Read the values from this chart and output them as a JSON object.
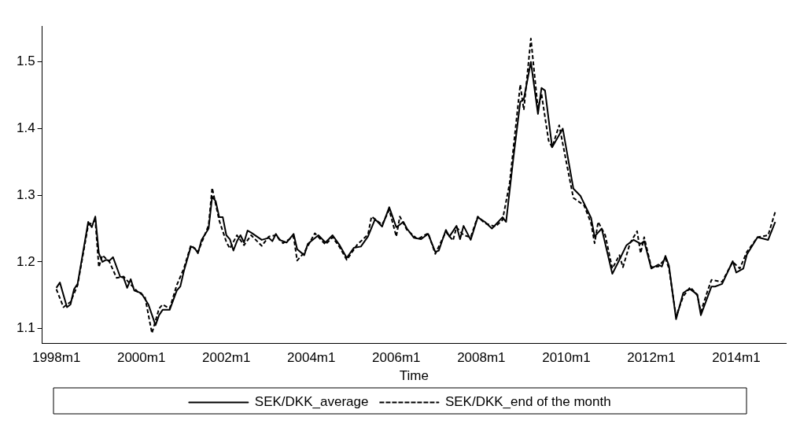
{
  "chart_data": {
    "type": "line",
    "xlabel": "Time",
    "marker": "none",
    "grid": false,
    "legend": "bottom",
    "xlim": [
      "1997-09",
      "2015-03"
    ],
    "ylim": [
      1.078,
      1.554
    ],
    "xticks": [
      {
        "value": "1998-01",
        "label": "1998m1"
      },
      {
        "value": "2000-01",
        "label": "2000m1"
      },
      {
        "value": "2002-01",
        "label": "2002m1"
      },
      {
        "value": "2004-01",
        "label": "2004m1"
      },
      {
        "value": "2006-01",
        "label": "2006m1"
      },
      {
        "value": "2008-01",
        "label": "2008m1"
      },
      {
        "value": "2010-01",
        "label": "2010m1"
      },
      {
        "value": "2012-01",
        "label": "2012m1"
      },
      {
        "value": "2014-01",
        "label": "2014m1"
      }
    ],
    "yticks": [
      1.1,
      1.2,
      1.3,
      1.4,
      1.5
    ],
    "series": [
      {
        "name": "SEK/DKK_average",
        "color": "#000000",
        "line_style": "solid",
        "x": [
          "1998-01",
          "1998-02",
          "1998-04",
          "1998-05",
          "1998-06",
          "1998-07",
          "1998-10",
          "1998-11",
          "1998-12",
          "1999-01",
          "1999-02",
          "1999-03",
          "1999-04",
          "1999-05",
          "1999-07",
          "1999-08",
          "1999-09",
          "1999-10",
          "1999-11",
          "2000-01",
          "2000-03",
          "2000-05",
          "2000-06",
          "2000-07",
          "2000-09",
          "2000-11",
          "2000-12",
          "2001-01",
          "2001-03",
          "2001-04",
          "2001-05",
          "2001-06",
          "2001-08",
          "2001-09",
          "2001-10",
          "2001-11",
          "2001-12",
          "2002-01",
          "2002-02",
          "2002-03",
          "2002-04",
          "2002-05",
          "2002-06",
          "2002-07",
          "2002-08",
          "2002-11",
          "2003-01",
          "2003-02",
          "2003-03",
          "2003-04",
          "2003-06",
          "2003-08",
          "2003-09",
          "2003-11",
          "2003-12",
          "2004-03",
          "2004-05",
          "2004-07",
          "2004-09",
          "2004-11",
          "2005-01",
          "2005-03",
          "2005-05",
          "2005-07",
          "2005-09",
          "2005-11",
          "2006-01",
          "2006-03",
          "2006-04",
          "2006-06",
          "2006-08",
          "2006-10",
          "2006-12",
          "2007-01",
          "2007-03",
          "2007-04",
          "2007-06",
          "2007-07",
          "2007-08",
          "2007-10",
          "2007-12",
          "2008-02",
          "2008-04",
          "2008-07",
          "2008-08",
          "2008-10",
          "2008-12",
          "2009-01",
          "2009-03",
          "2009-05",
          "2009-06",
          "2009-07",
          "2009-09",
          "2009-12",
          "2010-03",
          "2010-05",
          "2010-08",
          "2010-09",
          "2010-11",
          "2011-02",
          "2011-04",
          "2011-06",
          "2011-08",
          "2011-10",
          "2011-11",
          "2012-01",
          "2012-03",
          "2012-04",
          "2012-05",
          "2012-06",
          "2012-08",
          "2012-10",
          "2012-11",
          "2012-12",
          "2013-02",
          "2013-03",
          "2013-06",
          "2013-07",
          "2013-09",
          "2013-12",
          "2014-01",
          "2014-03",
          "2014-04",
          "2014-07",
          "2014-10",
          "2014-12"
        ],
        "values": [
          1.161,
          1.169,
          1.132,
          1.136,
          1.159,
          1.167,
          1.26,
          1.252,
          1.268,
          1.213,
          1.2,
          1.203,
          1.202,
          1.207,
          1.178,
          1.176,
          1.161,
          1.174,
          1.157,
          1.153,
          1.136,
          1.105,
          1.12,
          1.128,
          1.128,
          1.157,
          1.163,
          1.186,
          1.223,
          1.221,
          1.213,
          1.233,
          1.25,
          1.298,
          1.291,
          1.267,
          1.267,
          1.24,
          1.234,
          1.217,
          1.231,
          1.24,
          1.229,
          1.247,
          1.244,
          1.233,
          1.236,
          1.231,
          1.242,
          1.233,
          1.229,
          1.242,
          1.219,
          1.21,
          1.227,
          1.24,
          1.229,
          1.24,
          1.225,
          1.206,
          1.221,
          1.223,
          1.238,
          1.264,
          1.253,
          1.282,
          1.252,
          1.26,
          1.25,
          1.236,
          1.234,
          1.242,
          1.215,
          1.217,
          1.248,
          1.238,
          1.254,
          1.234,
          1.254,
          1.233,
          1.267,
          1.26,
          1.25,
          1.267,
          1.26,
          1.353,
          1.44,
          1.444,
          1.5,
          1.422,
          1.461,
          1.457,
          1.372,
          1.4,
          1.31,
          1.299,
          1.266,
          1.238,
          1.25,
          1.182,
          1.203,
          1.225,
          1.233,
          1.227,
          1.231,
          1.19,
          1.196,
          1.193,
          1.209,
          1.194,
          1.114,
          1.153,
          1.157,
          1.159,
          1.151,
          1.12,
          1.163,
          1.163,
          1.167,
          1.201,
          1.184,
          1.19,
          1.211,
          1.237,
          1.233,
          1.26
        ]
      },
      {
        "name": "SEK/DKK_end of the month",
        "color": "#000000",
        "line_style": "dashed",
        "x": [
          "1998-01",
          "1998-03",
          "1998-05",
          "1998-07",
          "1998-10",
          "1998-12",
          "1999-01",
          "1999-02",
          "1999-04",
          "1999-06",
          "1999-08",
          "1999-10",
          "1999-12",
          "2000-02",
          "2000-04",
          "2000-06",
          "2000-07",
          "2000-09",
          "2000-11",
          "2001-01",
          "2001-03",
          "2001-05",
          "2001-08",
          "2001-09",
          "2001-11",
          "2002-01",
          "2002-02",
          "2002-04",
          "2002-06",
          "2002-08",
          "2002-11",
          "2003-01",
          "2003-03",
          "2003-05",
          "2003-08",
          "2003-09",
          "2003-11",
          "2004-02",
          "2004-05",
          "2004-07",
          "2004-09",
          "2004-11",
          "2005-02",
          "2005-05",
          "2005-06",
          "2005-09",
          "2005-11",
          "2006-01",
          "2006-02",
          "2006-04",
          "2006-07",
          "2006-10",
          "2006-12",
          "2007-03",
          "2007-05",
          "2007-06",
          "2007-08",
          "2007-10",
          "2007-12",
          "2008-02",
          "2008-05",
          "2008-07",
          "2008-09",
          "2008-12",
          "2009-01",
          "2009-03",
          "2009-05",
          "2009-06",
          "2009-08",
          "2009-09",
          "2009-11",
          "2010-01",
          "2010-03",
          "2010-06",
          "2010-08",
          "2010-09",
          "2010-10",
          "2010-12",
          "2011-02",
          "2011-04",
          "2011-05",
          "2011-07",
          "2011-09",
          "2011-10",
          "2011-11",
          "2012-01",
          "2012-03",
          "2012-05",
          "2012-06",
          "2012-08",
          "2012-10",
          "2012-12",
          "2013-02",
          "2013-03",
          "2013-05",
          "2013-06",
          "2013-09",
          "2013-12",
          "2014-02",
          "2014-04",
          "2014-07",
          "2014-10",
          "2014-12"
        ],
        "values": [
          1.159,
          1.132,
          1.14,
          1.165,
          1.255,
          1.262,
          1.192,
          1.21,
          1.2,
          1.176,
          1.178,
          1.166,
          1.155,
          1.148,
          1.093,
          1.13,
          1.136,
          1.13,
          1.165,
          1.19,
          1.225,
          1.215,
          1.255,
          1.311,
          1.262,
          1.23,
          1.22,
          1.24,
          1.225,
          1.24,
          1.224,
          1.238,
          1.24,
          1.228,
          1.238,
          1.202,
          1.214,
          1.243,
          1.226,
          1.237,
          1.222,
          1.203,
          1.226,
          1.241,
          1.268,
          1.256,
          1.278,
          1.238,
          1.268,
          1.248,
          1.234,
          1.243,
          1.212,
          1.245,
          1.232,
          1.252,
          1.24,
          1.237,
          1.268,
          1.258,
          1.253,
          1.263,
          1.318,
          1.466,
          1.428,
          1.535,
          1.43,
          1.452,
          1.382,
          1.372,
          1.405,
          1.35,
          1.296,
          1.285,
          1.258,
          1.228,
          1.26,
          1.24,
          1.19,
          1.21,
          1.192,
          1.228,
          1.246,
          1.213,
          1.237,
          1.192,
          1.193,
          1.205,
          1.19,
          1.118,
          1.148,
          1.162,
          1.15,
          1.125,
          1.158,
          1.173,
          1.17,
          1.2,
          1.19,
          1.215,
          1.237,
          1.24,
          1.275
        ]
      }
    ]
  }
}
